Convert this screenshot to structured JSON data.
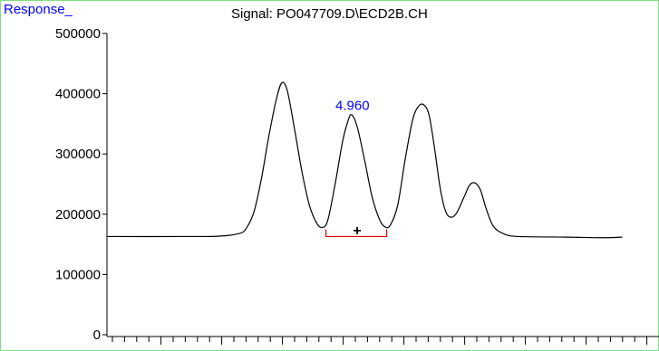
{
  "window": {
    "ylabel": "Response_",
    "title": "Signal: PO047709.D\\ECD2B.CH",
    "frame_color": "#7fe07f"
  },
  "chart_data": {
    "type": "line",
    "title": "Signal: PO047709.D\\ECD2B.CH",
    "xlabel": "",
    "ylabel": "Response_",
    "ylim": [
      0,
      500000
    ],
    "y_ticks": [
      0,
      100000,
      200000,
      300000,
      400000,
      500000
    ],
    "y_tick_labels": [
      "0",
      "100000",
      "200000",
      "300000",
      "400000",
      "500000"
    ],
    "xlim": [
      4.0,
      5.5
    ],
    "x_tick_count": 45,
    "grid": false,
    "series": [
      {
        "color": "#000000",
        "points": [
          [
            4.0,
            163000
          ],
          [
            4.2,
            163000
          ],
          [
            4.3,
            163500
          ],
          [
            4.36,
            168000
          ],
          [
            4.38,
            178000
          ],
          [
            4.4,
            205000
          ],
          [
            4.42,
            260000
          ],
          [
            4.44,
            330000
          ],
          [
            4.46,
            390000
          ],
          [
            4.475,
            418000
          ],
          [
            4.49,
            405000
          ],
          [
            4.51,
            340000
          ],
          [
            4.53,
            270000
          ],
          [
            4.55,
            215000
          ],
          [
            4.57,
            185000
          ],
          [
            4.585,
            178000
          ],
          [
            4.6,
            190000
          ],
          [
            4.62,
            250000
          ],
          [
            4.64,
            320000
          ],
          [
            4.655,
            355000
          ],
          [
            4.665,
            365000
          ],
          [
            4.68,
            345000
          ],
          [
            4.7,
            290000
          ],
          [
            4.72,
            230000
          ],
          [
            4.74,
            192000
          ],
          [
            4.755,
            179000
          ],
          [
            4.77,
            182000
          ],
          [
            4.79,
            215000
          ],
          [
            4.81,
            290000
          ],
          [
            4.83,
            355000
          ],
          [
            4.845,
            378000
          ],
          [
            4.86,
            382000
          ],
          [
            4.875,
            365000
          ],
          [
            4.89,
            310000
          ],
          [
            4.905,
            245000
          ],
          [
            4.92,
            205000
          ],
          [
            4.935,
            195000
          ],
          [
            4.95,
            202000
          ],
          [
            4.97,
            228000
          ],
          [
            4.985,
            248000
          ],
          [
            5.0,
            252000
          ],
          [
            5.015,
            240000
          ],
          [
            5.03,
            210000
          ],
          [
            5.05,
            180000
          ],
          [
            5.08,
            167000
          ],
          [
            5.12,
            163000
          ],
          [
            5.25,
            162000
          ],
          [
            5.35,
            161000
          ],
          [
            5.4,
            162000
          ]
        ]
      }
    ],
    "annotations": {
      "peak_label": {
        "text": "4.960",
        "x": 4.667,
        "y": 370000
      },
      "integration_baseline": {
        "x_start": 4.595,
        "x_end": 4.76,
        "y": 163000,
        "color": "#e00000"
      },
      "marker": {
        "text": "+",
        "x": 4.68,
        "y": 173000
      }
    }
  }
}
